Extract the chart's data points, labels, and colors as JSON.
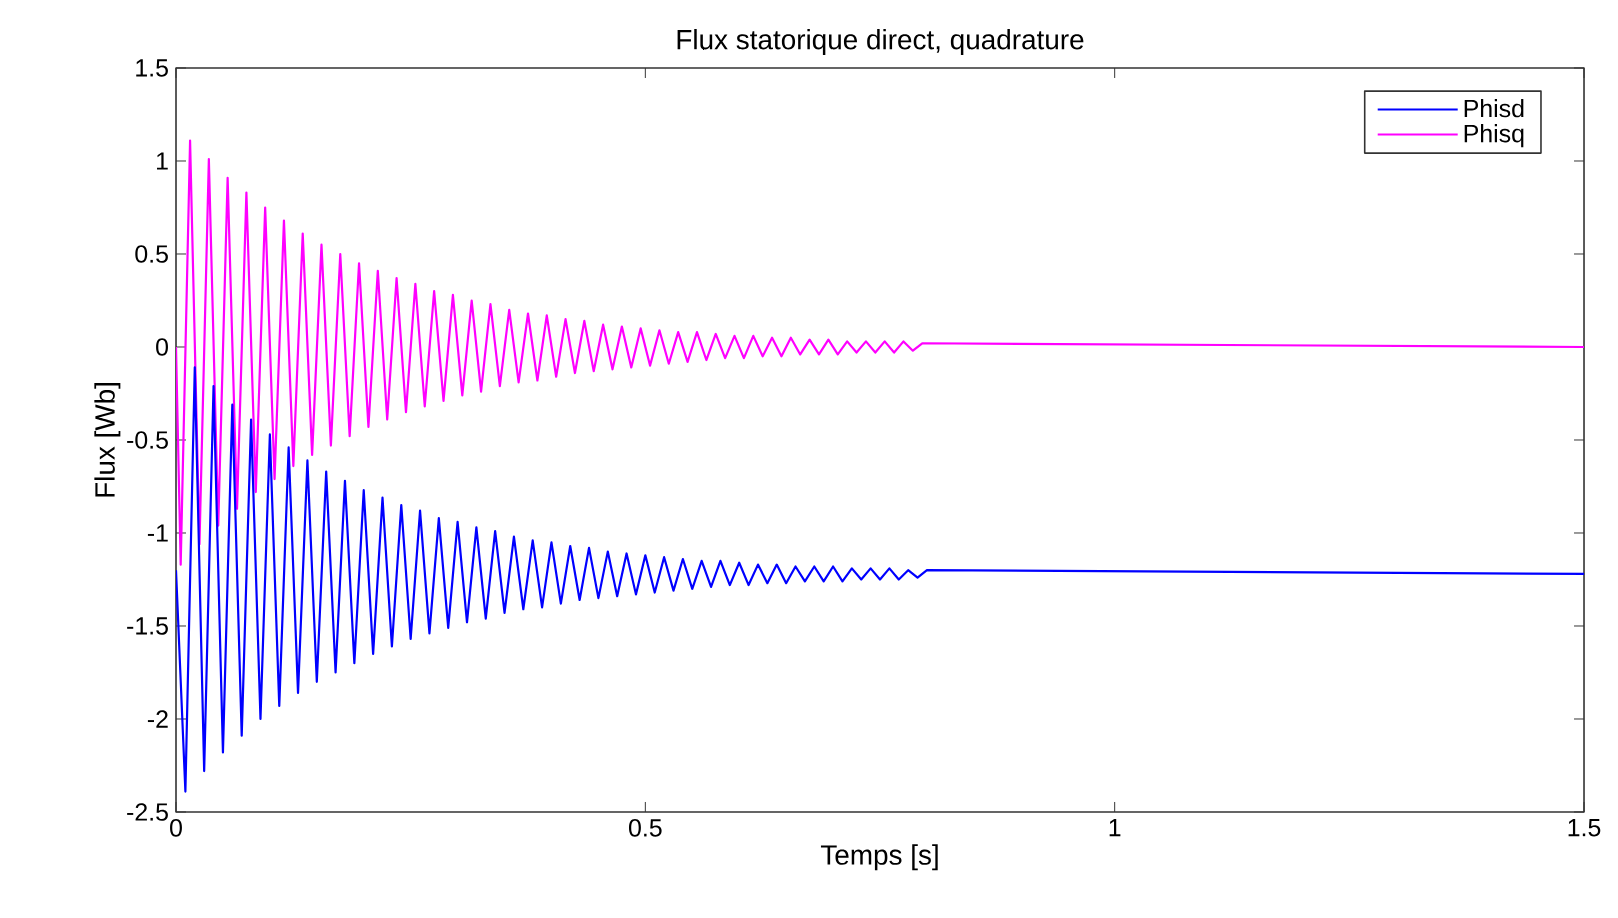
{
  "chart_data": {
    "type": "line",
    "title": "Flux statorique direct, quadrature",
    "xlabel": "Temps [s]",
    "ylabel": "Flux [Wb]",
    "xlim": [
      0,
      1.5
    ],
    "ylim": [
      -2.5,
      1.5
    ],
    "xticks": [
      0,
      0.5,
      1,
      1.5
    ],
    "yticks": [
      -2.5,
      -2,
      -1.5,
      -1,
      -0.5,
      0,
      0.5,
      1,
      1.5
    ],
    "legend": "top right",
    "grid": false,
    "marker": "none",
    "line_style": "solid",
    "series": [
      {
        "name": "Phisd",
        "color": "#0000ff",
        "x": [
          0,
          0.01,
          0.02,
          0.03,
          0.04,
          0.05,
          0.06,
          0.07,
          0.08,
          0.09,
          0.1,
          0.11,
          0.12,
          0.13,
          0.14,
          0.15,
          0.16,
          0.17,
          0.18,
          0.19,
          0.2,
          0.21,
          0.22,
          0.23,
          0.24,
          0.25,
          0.26,
          0.27,
          0.28,
          0.29,
          0.3,
          0.31,
          0.32,
          0.33,
          0.34,
          0.35,
          0.36,
          0.37,
          0.38,
          0.39,
          0.4,
          0.41,
          0.42,
          0.43,
          0.44,
          0.45,
          0.46,
          0.47,
          0.48,
          0.49,
          0.5,
          0.51,
          0.52,
          0.53,
          0.54,
          0.55,
          0.56,
          0.57,
          0.58,
          0.59,
          0.6,
          0.61,
          0.62,
          0.63,
          0.64,
          0.65,
          0.66,
          0.67,
          0.68,
          0.69,
          0.7,
          0.71,
          0.72,
          0.73,
          0.74,
          0.75,
          0.76,
          0.77,
          0.78,
          0.79,
          0.8,
          1.5
        ],
        "values": [
          -1.2,
          -2.39,
          -0.11,
          -2.28,
          -0.21,
          -2.18,
          -0.31,
          -2.09,
          -0.39,
          -2.0,
          -0.47,
          -1.93,
          -0.54,
          -1.86,
          -0.61,
          -1.8,
          -0.67,
          -1.75,
          -0.72,
          -1.7,
          -0.77,
          -1.65,
          -0.81,
          -1.61,
          -0.85,
          -1.57,
          -0.88,
          -1.54,
          -0.92,
          -1.51,
          -0.94,
          -1.48,
          -0.97,
          -1.46,
          -0.99,
          -1.43,
          -1.02,
          -1.41,
          -1.04,
          -1.4,
          -1.05,
          -1.38,
          -1.07,
          -1.36,
          -1.08,
          -1.35,
          -1.1,
          -1.34,
          -1.11,
          -1.33,
          -1.12,
          -1.32,
          -1.13,
          -1.31,
          -1.14,
          -1.3,
          -1.15,
          -1.29,
          -1.15,
          -1.28,
          -1.16,
          -1.28,
          -1.17,
          -1.27,
          -1.17,
          -1.27,
          -1.18,
          -1.26,
          -1.18,
          -1.26,
          -1.18,
          -1.26,
          -1.19,
          -1.25,
          -1.19,
          -1.25,
          -1.19,
          -1.25,
          -1.2,
          -1.24,
          -1.2,
          -1.22
        ]
      },
      {
        "name": "Phisq",
        "color": "#ff00ff",
        "x": [
          0,
          0.005,
          0.015,
          0.025,
          0.035,
          0.045,
          0.055,
          0.065,
          0.075,
          0.085,
          0.095,
          0.105,
          0.115,
          0.125,
          0.135,
          0.145,
          0.155,
          0.165,
          0.175,
          0.185,
          0.195,
          0.205,
          0.215,
          0.225,
          0.235,
          0.245,
          0.255,
          0.265,
          0.275,
          0.285,
          0.295,
          0.305,
          0.315,
          0.325,
          0.335,
          0.345,
          0.355,
          0.365,
          0.375,
          0.385,
          0.395,
          0.405,
          0.415,
          0.425,
          0.435,
          0.445,
          0.455,
          0.465,
          0.475,
          0.485,
          0.495,
          0.505,
          0.515,
          0.525,
          0.535,
          0.545,
          0.555,
          0.565,
          0.575,
          0.585,
          0.595,
          0.605,
          0.615,
          0.625,
          0.635,
          0.645,
          0.655,
          0.665,
          0.675,
          0.685,
          0.695,
          0.705,
          0.715,
          0.725,
          0.735,
          0.745,
          0.755,
          0.765,
          0.775,
          0.785,
          0.795,
          1.5
        ],
        "values": [
          0,
          -1.17,
          1.11,
          -1.06,
          1.01,
          -0.96,
          0.91,
          -0.87,
          0.83,
          -0.78,
          0.75,
          -0.71,
          0.68,
          -0.64,
          0.61,
          -0.58,
          0.55,
          -0.53,
          0.5,
          -0.48,
          0.45,
          -0.43,
          0.41,
          -0.39,
          0.37,
          -0.35,
          0.34,
          -0.32,
          0.3,
          -0.29,
          0.28,
          -0.26,
          0.25,
          -0.24,
          0.23,
          -0.21,
          0.2,
          -0.19,
          0.18,
          -0.18,
          0.17,
          -0.16,
          0.15,
          -0.14,
          0.14,
          -0.13,
          0.12,
          -0.12,
          0.11,
          -0.11,
          0.1,
          -0.1,
          0.09,
          -0.09,
          0.08,
          -0.08,
          0.08,
          -0.07,
          0.07,
          -0.06,
          0.06,
          -0.06,
          0.06,
          -0.05,
          0.05,
          -0.05,
          0.05,
          -0.04,
          0.04,
          -0.04,
          0.04,
          -0.04,
          0.03,
          -0.03,
          0.03,
          -0.03,
          0.03,
          -0.03,
          0.03,
          -0.02,
          0.02,
          0
        ]
      }
    ]
  }
}
